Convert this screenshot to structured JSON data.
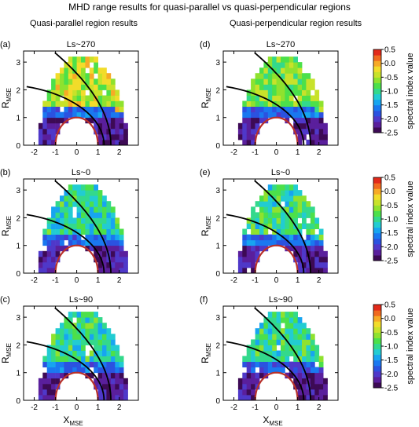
{
  "title": "MHD range results for quasi-parallel vs quasi-perpendicular regions",
  "column_titles": [
    "Quasi-parallel region results",
    "Quasi-perpendicular region results"
  ],
  "colorbar": {
    "label": "spectral index value",
    "ticks": [
      "0.5",
      "0.0",
      "-0.5",
      "-1.0",
      "-1.5",
      "-2.0",
      "-2.5"
    ],
    "range": [
      -2.5,
      0.5
    ],
    "colors": [
      "#3d0a55",
      "#5a1f9c",
      "#4f38c9",
      "#2b52e0",
      "#1a78f0",
      "#17a5f0",
      "#22ccd2",
      "#33d98c",
      "#4ce04a",
      "#8fe22e",
      "#c8e22a",
      "#f2dc2a",
      "#f7aa26",
      "#f06a1f",
      "#e22a1a"
    ]
  },
  "axes": {
    "xlabel": "X",
    "xlabel_sub": "MSE",
    "ylabel": "R",
    "ylabel_sub": "MSE",
    "x_ticks": [
      "-2",
      "-1",
      "0",
      "1",
      "2"
    ],
    "y_ticks": [
      "0",
      "1",
      "2",
      "3"
    ],
    "xlim": [
      -2.5,
      2.9
    ],
    "ylim": [
      0,
      3.4
    ]
  },
  "chart_data": [
    {
      "type": "heatmap",
      "panel": "(a)",
      "title": "Ls~270",
      "region": "quasi-parallel",
      "season_ls": 270,
      "mean_index_outer": -0.45,
      "mean_index_inner": -2.2,
      "grid": "on"
    },
    {
      "type": "heatmap",
      "panel": "(d)",
      "title": "Ls~270",
      "region": "quasi-perpendicular",
      "season_ls": 270,
      "mean_index_outer": -0.7,
      "mean_index_inner": -2.2,
      "grid": "on"
    },
    {
      "type": "heatmap",
      "panel": "(b)",
      "title": "Ls~0",
      "region": "quasi-parallel",
      "season_ls": 0,
      "mean_index_outer": -1.05,
      "mean_index_inner": -2.2,
      "grid": "on"
    },
    {
      "type": "heatmap",
      "panel": "(e)",
      "title": "Ls~0",
      "region": "quasi-perpendicular",
      "season_ls": 0,
      "mean_index_outer": -0.95,
      "mean_index_inner": -2.2,
      "grid": "on"
    },
    {
      "type": "heatmap",
      "panel": "(c)",
      "title": "Ls~90",
      "region": "quasi-parallel",
      "season_ls": 90,
      "mean_index_outer": -1.05,
      "mean_index_inner": -2.2,
      "grid": "on"
    },
    {
      "type": "heatmap",
      "panel": "(f)",
      "title": "Ls~90",
      "region": "quasi-perpendicular",
      "season_ls": 90,
      "mean_index_outer": -1.0,
      "mean_index_inner": -2.25,
      "grid": "on"
    }
  ]
}
